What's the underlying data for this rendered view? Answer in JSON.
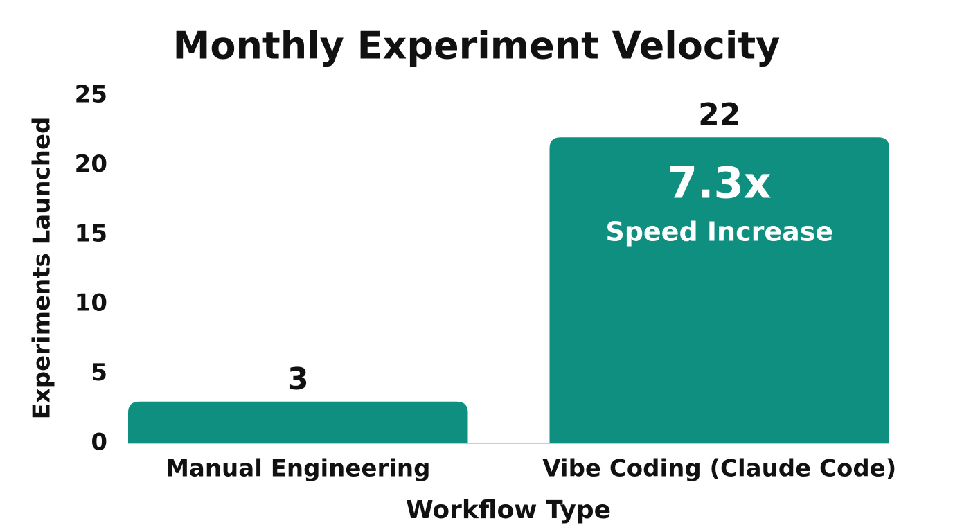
{
  "chart_data": {
    "type": "bar",
    "title": "Monthly Experiment Velocity",
    "x_label": "Workflow Type",
    "y_label": "Experiments Launched",
    "categories": [
      "Manual Engineering",
      "Vibe Coding (Claude Code)"
    ],
    "values": [
      3,
      22
    ],
    "color": "#0f8f80",
    "ylim": [
      0,
      25
    ],
    "yticks": [
      0,
      5,
      10,
      15,
      20,
      25
    ],
    "grid": false,
    "annotations": [
      "7.3x",
      "Speed Increase"
    ]
  }
}
